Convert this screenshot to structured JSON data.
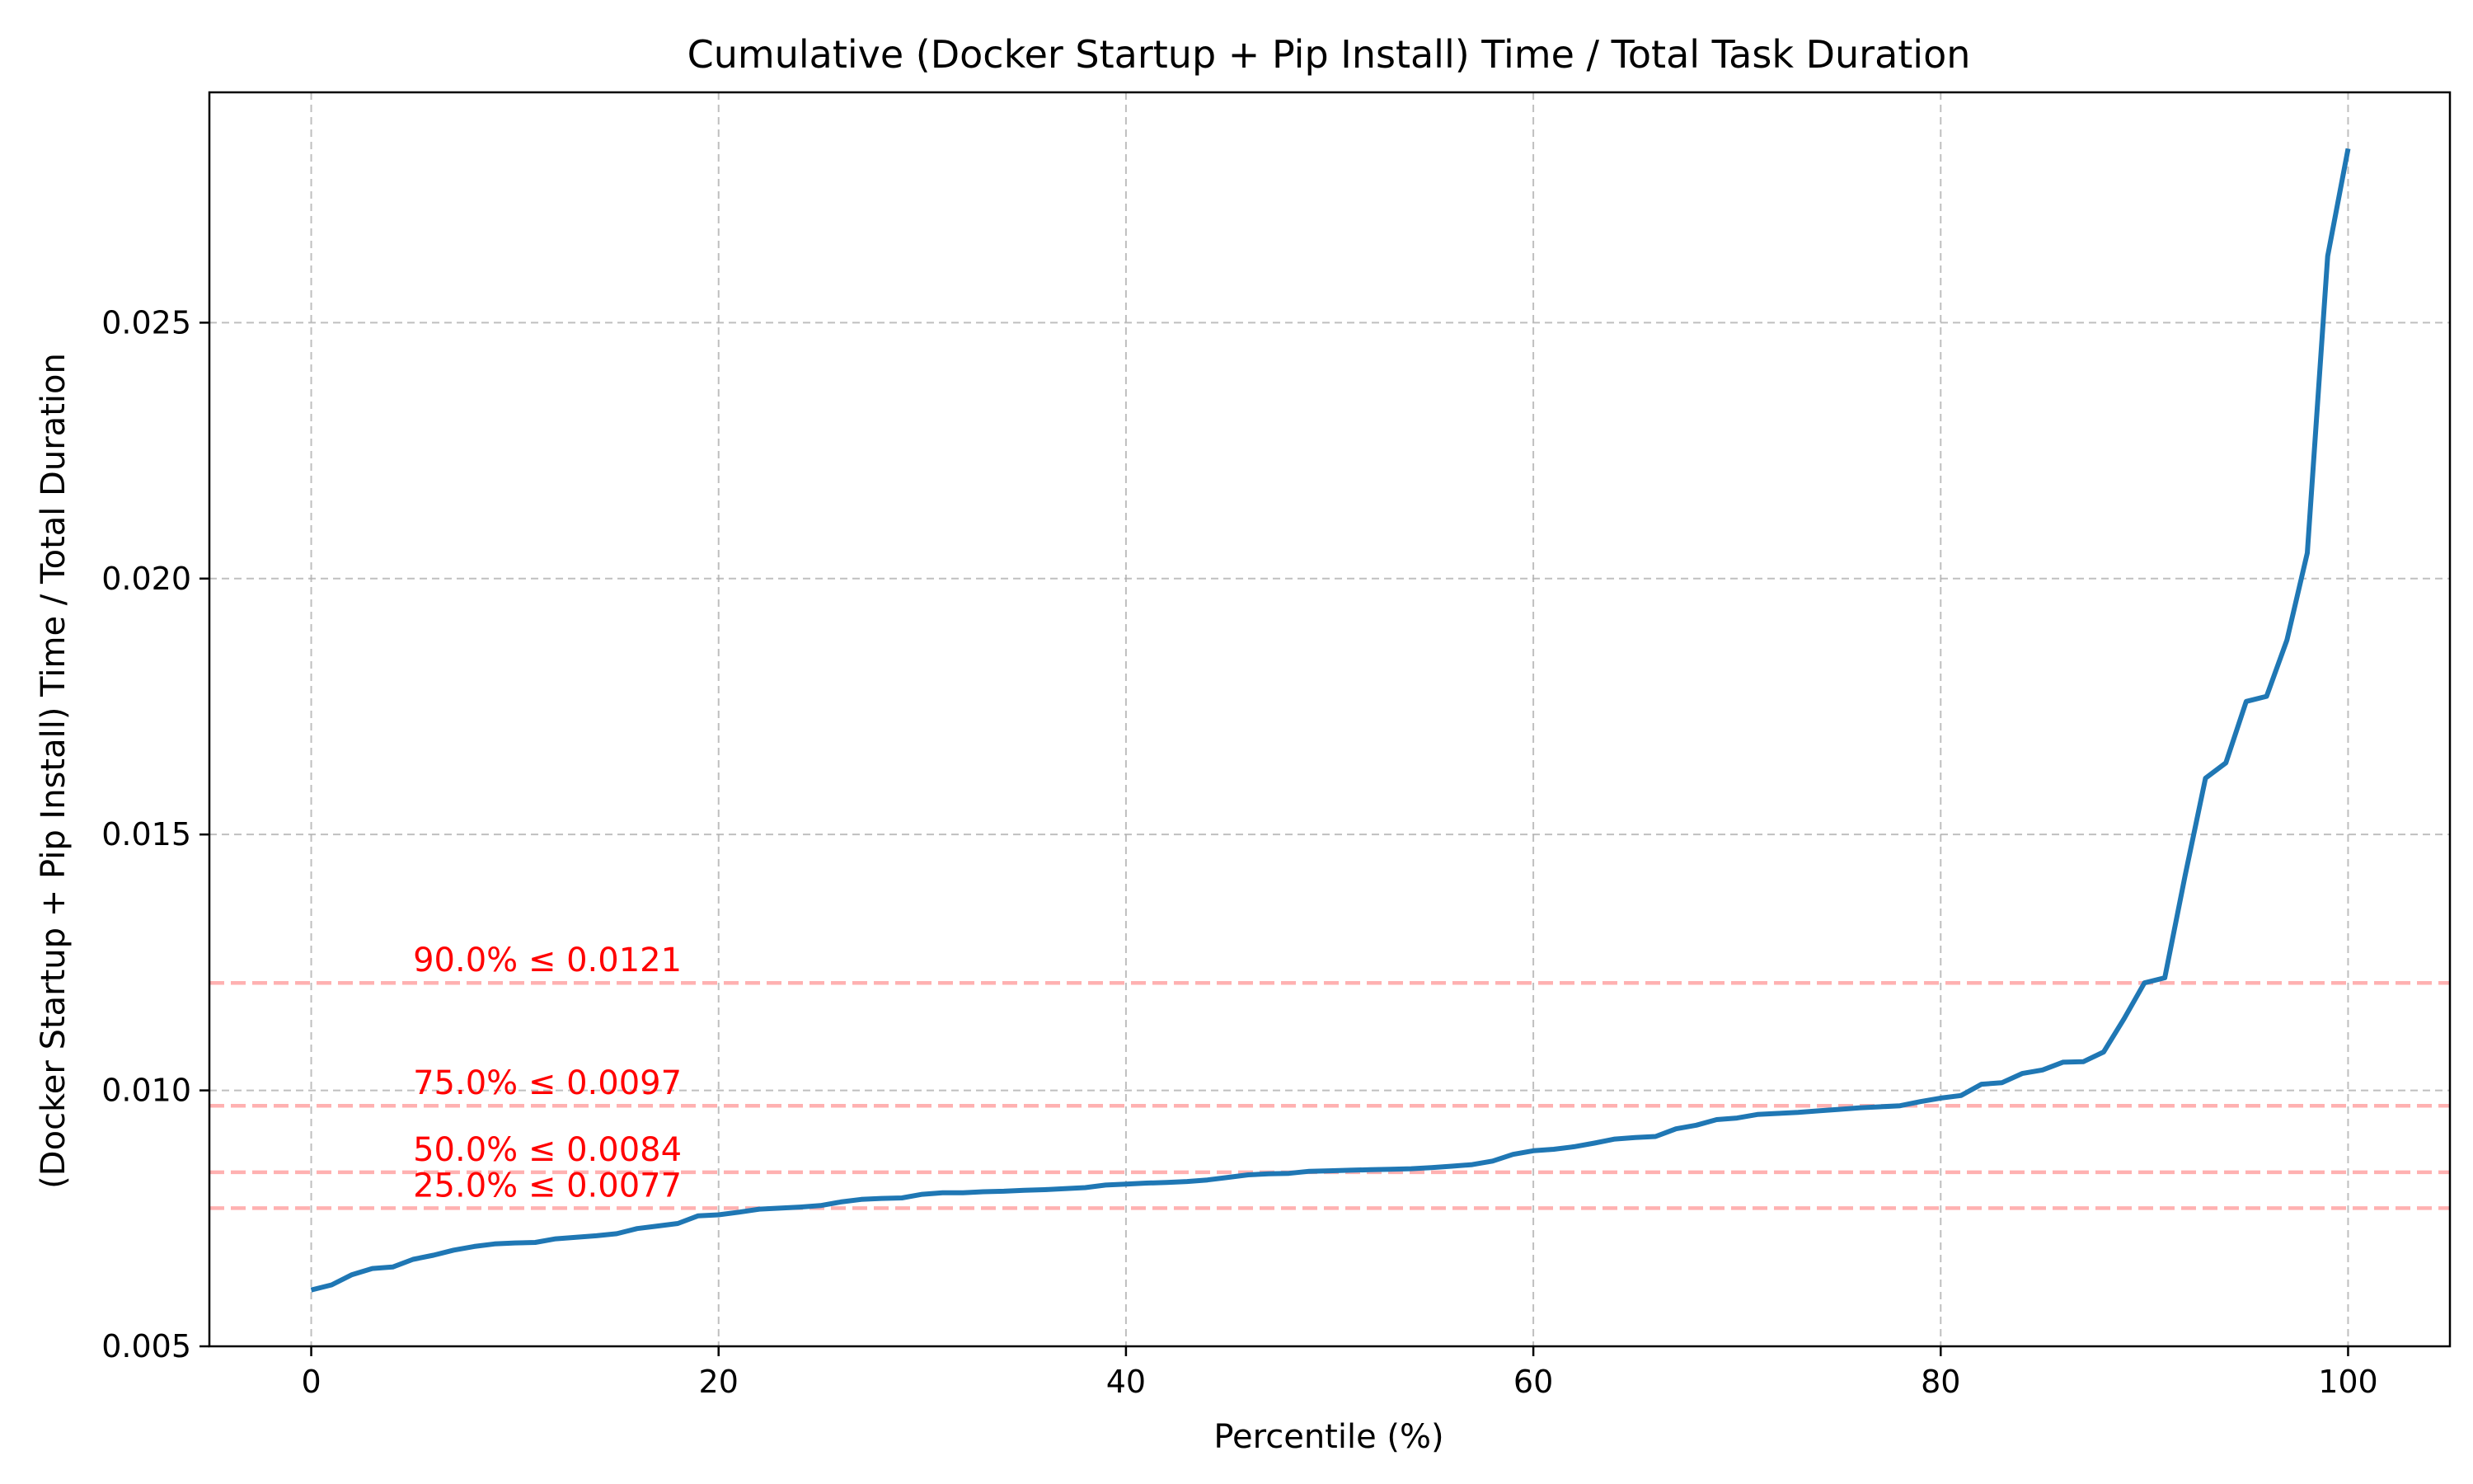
{
  "chart_data": {
    "type": "line",
    "title": "Cumulative (Docker Startup + Pip Install) Time / Total Task Duration",
    "xlabel": "Percentile (%)",
    "ylabel": "(Docker Startup + Pip Install) Time / Total Duration",
    "xlim": [
      -5,
      105
    ],
    "ylim": [
      0.005,
      0.0295
    ],
    "grid": true,
    "x_ticks": [
      0,
      20,
      40,
      60,
      80,
      100
    ],
    "x_tick_labels": [
      "0",
      "20",
      "40",
      "60",
      "80",
      "100"
    ],
    "y_ticks": [
      0.005,
      0.01,
      0.015,
      0.02,
      0.025
    ],
    "y_tick_labels": [
      "0.005",
      "0.010",
      "0.015",
      "0.020",
      "0.025"
    ],
    "line_color": "#1f77b4",
    "ref_color": "#ff0000",
    "series": [
      {
        "x": [
          0,
          1,
          2,
          3,
          4,
          5,
          6,
          7,
          8,
          9,
          10,
          11,
          12,
          13,
          14,
          15,
          16,
          17,
          18,
          19,
          20,
          21,
          22,
          23,
          24,
          25,
          26,
          27,
          28,
          29,
          30,
          31,
          32,
          33,
          34,
          35,
          36,
          37,
          38,
          39,
          40,
          41,
          42,
          43,
          44,
          45,
          46,
          47,
          48,
          49,
          50,
          51,
          52,
          53,
          54,
          55,
          56,
          57,
          58,
          59,
          60,
          61,
          62,
          63,
          64,
          65,
          66,
          67,
          68,
          69,
          70,
          71,
          72,
          73,
          74,
          75,
          76,
          77,
          78,
          79,
          80,
          81,
          82,
          83,
          84,
          85,
          86,
          87,
          88,
          89,
          90,
          91,
          92,
          93,
          94,
          95,
          96,
          97,
          98,
          99,
          100
        ],
        "y": [
          0.0061,
          0.0062,
          0.0064,
          0.00652,
          0.00655,
          0.0067,
          0.00678,
          0.00688,
          0.00695,
          0.007,
          0.00702,
          0.00703,
          0.0071,
          0.00713,
          0.00716,
          0.0072,
          0.0073,
          0.00735,
          0.0074,
          0.00755,
          0.00757,
          0.00762,
          0.00768,
          0.0077,
          0.00772,
          0.00775,
          0.00782,
          0.00787,
          0.00789,
          0.0079,
          0.00797,
          0.008,
          0.008,
          0.00802,
          0.00803,
          0.00805,
          0.00806,
          0.00808,
          0.0081,
          0.00815,
          0.00817,
          0.00819,
          0.0082,
          0.00822,
          0.00825,
          0.0083,
          0.00835,
          0.00837,
          0.00838,
          0.00842,
          0.00843,
          0.00844,
          0.00845,
          0.00846,
          0.00847,
          0.00849,
          0.00852,
          0.00855,
          0.00862,
          0.00875,
          0.00882,
          0.00885,
          0.0089,
          0.00897,
          0.00905,
          0.00908,
          0.0091,
          0.00925,
          0.00932,
          0.00943,
          0.00946,
          0.00953,
          0.00955,
          0.00957,
          0.0096,
          0.00963,
          0.00966,
          0.00968,
          0.0097,
          0.00978,
          0.00985,
          0.0099,
          0.01012,
          0.01015,
          0.01033,
          0.0104,
          0.01055,
          0.01056,
          0.01075,
          0.0114,
          0.0121,
          0.0122,
          0.0142,
          0.0161,
          0.0164,
          0.0176,
          0.0177,
          0.0188,
          0.0205,
          0.0263,
          0.0284
        ]
      }
    ],
    "reference_lines": [
      {
        "value": 0.0121,
        "label": "90.0% ≤ 0.0121"
      },
      {
        "value": 0.0097,
        "label": "75.0% ≤ 0.0097"
      },
      {
        "value": 0.0084,
        "label": "50.0% ≤ 0.0084"
      },
      {
        "value": 0.0077,
        "label": "25.0% ≤ 0.0077"
      }
    ],
    "reference_label_x": 5
  }
}
